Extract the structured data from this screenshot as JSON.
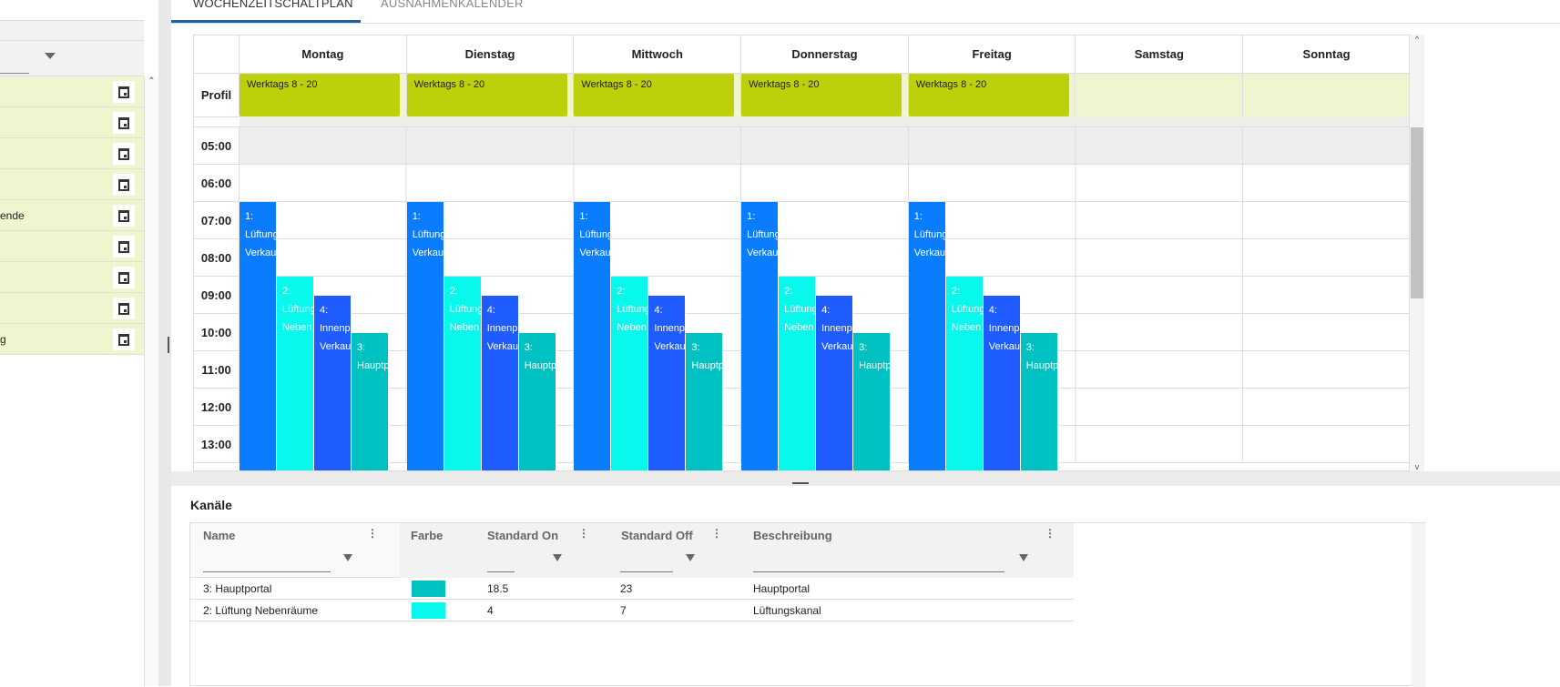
{
  "tabs": [
    {
      "label": "WOCHENZEITSCHALTPLAN",
      "active": true
    },
    {
      "label": "AUSNAHMENKALENDER",
      "active": false
    }
  ],
  "left_panel": {
    "rows": [
      {
        "text": ""
      },
      {
        "text": ""
      },
      {
        "text": ""
      },
      {
        "text": ""
      },
      {
        "text": "ende"
      },
      {
        "text": ""
      },
      {
        "text": ""
      },
      {
        "text": ""
      },
      {
        "text": "g"
      }
    ]
  },
  "schedule": {
    "days": [
      "Montag",
      "Dienstag",
      "Mittwoch",
      "Donnerstag",
      "Freitag",
      "Samstag",
      "Sonntag"
    ],
    "profile_label": "Profil",
    "profiles": [
      "Werktags 8 - 20",
      "Werktags 8 - 20",
      "Werktags 8 - 20",
      "Werktags 8 - 20",
      "Werktags 8 - 20",
      "",
      ""
    ],
    "times": [
      "05:00",
      "06:00",
      "07:00",
      "08:00",
      "09:00",
      "10:00",
      "11:00",
      "12:00",
      "13:00"
    ],
    "event_days": [
      0,
      1,
      2,
      3,
      4
    ],
    "events": [
      {
        "lines": [
          "1:",
          "Lüftung",
          "Verkau"
        ],
        "start": 7,
        "slot": 0,
        "color": "#0a7dff"
      },
      {
        "lines": [
          "2:",
          "Lüftung",
          "Neben"
        ],
        "start": 9,
        "slot": 1,
        "color": "#08f8ee"
      },
      {
        "lines": [
          "4:",
          "Innenp",
          "Verkau"
        ],
        "start": 9.5,
        "slot": 2,
        "color": "#1f5cff"
      },
      {
        "lines": [
          "3:",
          "Hauptp"
        ],
        "start": 10.5,
        "slot": 3,
        "color": "#00c1c1"
      }
    ]
  },
  "channels": {
    "title": "Kanäle",
    "columns": [
      "Name",
      "Farbe",
      "Standard On",
      "Standard Off",
      "Beschreibung"
    ],
    "rows": [
      {
        "name": "3: Hauptportal",
        "color": "#00c1c1",
        "on": "18.5",
        "off": "23",
        "desc": "Hauptportal"
      },
      {
        "name": "2: Lüftung Nebenräume",
        "color": "#08f8ee",
        "on": "4",
        "off": "7",
        "desc": "Lüftungskanal"
      }
    ]
  }
}
